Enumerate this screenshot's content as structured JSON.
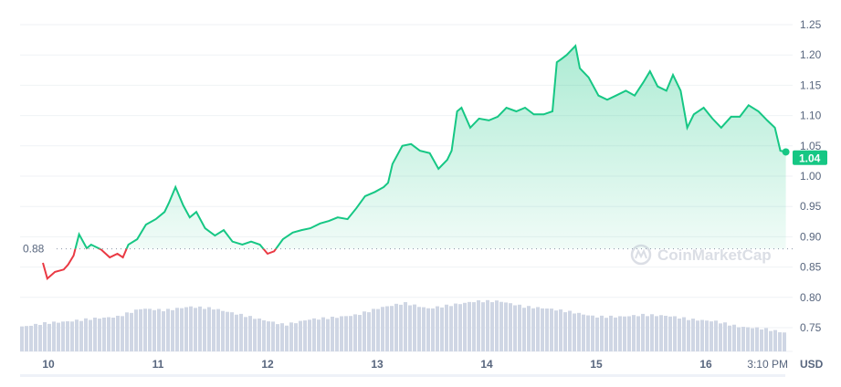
{
  "chart_data": {
    "type": "line",
    "title": "",
    "xlabel": "",
    "ylabel": "USD",
    "ylim": [
      0.72,
      1.26
    ],
    "yticks": [
      "0.75",
      "0.80",
      "0.85",
      "0.90",
      "0.95",
      "1.00",
      "1.05",
      "1.10",
      "1.15",
      "1.20",
      "1.25"
    ],
    "xticks": [
      {
        "day": 10,
        "label": "10"
      },
      {
        "day": 11,
        "label": "11"
      },
      {
        "day": 12,
        "label": "12"
      },
      {
        "day": 13,
        "label": "13"
      },
      {
        "day": 14,
        "label": "14"
      },
      {
        "day": 15,
        "label": "15"
      },
      {
        "day": 16,
        "label": "16"
      }
    ],
    "last_time_label": "3:10 PM",
    "reference_price": 0.88,
    "reference_label": "0.88",
    "current_price_label": "1.04",
    "grid": true,
    "colors": {
      "up": "#16c784",
      "down": "#ea3943",
      "volume": "#cfd6e4",
      "grid": "#eff2f5"
    },
    "series": [
      {
        "x": [
          9.95,
          9.99,
          10.06,
          10.14,
          10.18,
          10.23,
          10.28,
          10.35,
          10.39,
          10.48,
          10.56,
          10.63,
          10.68,
          10.73,
          10.81,
          10.89,
          10.98,
          11.06,
          11.1,
          11.16,
          11.23,
          11.29,
          11.35,
          11.43,
          11.52,
          11.6,
          11.68,
          11.77,
          11.85,
          11.93,
          12.0,
          12.06,
          12.14,
          12.23,
          12.31,
          12.39,
          12.48,
          12.56,
          12.64,
          12.73,
          12.81,
          12.89,
          12.98,
          13.06,
          13.1,
          13.14,
          13.23,
          13.31,
          13.39,
          13.48,
          13.56,
          13.64,
          13.68,
          13.73,
          13.77,
          13.85,
          13.93,
          14.02,
          14.1,
          14.18,
          14.27,
          14.35,
          14.43,
          14.52,
          14.6,
          14.64,
          14.68,
          14.73,
          14.81,
          14.85,
          14.93,
          15.02,
          15.1,
          15.18,
          15.27,
          15.35,
          15.43,
          15.49,
          15.56,
          15.64,
          15.7,
          15.77,
          15.83,
          15.89,
          15.98,
          16.06,
          16.14,
          16.23,
          16.31,
          16.39,
          16.48,
          16.56,
          16.63,
          16.68,
          16.73
        ],
        "y": [
          0.857,
          0.831,
          0.842,
          0.846,
          0.854,
          0.869,
          0.904,
          0.881,
          0.887,
          0.879,
          0.866,
          0.872,
          0.866,
          0.887,
          0.896,
          0.92,
          0.929,
          0.941,
          0.956,
          0.982,
          0.952,
          0.932,
          0.941,
          0.914,
          0.902,
          0.911,
          0.892,
          0.887,
          0.892,
          0.887,
          0.872,
          0.876,
          0.896,
          0.907,
          0.911,
          0.914,
          0.922,
          0.926,
          0.932,
          0.929,
          0.947,
          0.967,
          0.974,
          0.982,
          0.989,
          1.02,
          1.05,
          1.053,
          1.042,
          1.038,
          1.012,
          1.027,
          1.042,
          1.107,
          1.113,
          1.08,
          1.095,
          1.092,
          1.098,
          1.113,
          1.107,
          1.113,
          1.102,
          1.102,
          1.107,
          1.188,
          1.193,
          1.2,
          1.215,
          1.178,
          1.163,
          1.133,
          1.126,
          1.133,
          1.141,
          1.133,
          1.155,
          1.173,
          1.148,
          1.141,
          1.167,
          1.141,
          1.08,
          1.102,
          1.113,
          1.095,
          1.08,
          1.098,
          1.098,
          1.117,
          1.107,
          1.092,
          1.08,
          1.042,
          1.04
        ]
      }
    ],
    "volume_relative": [
      27,
      31,
      33,
      36,
      38,
      47,
      45,
      49,
      47,
      41,
      35,
      29,
      35,
      37,
      40,
      48,
      53,
      47,
      51,
      55,
      55,
      49,
      47,
      43,
      38,
      38,
      40,
      39,
      35,
      33,
      27,
      25,
      20
    ]
  },
  "watermark": "CoinMarketCap"
}
